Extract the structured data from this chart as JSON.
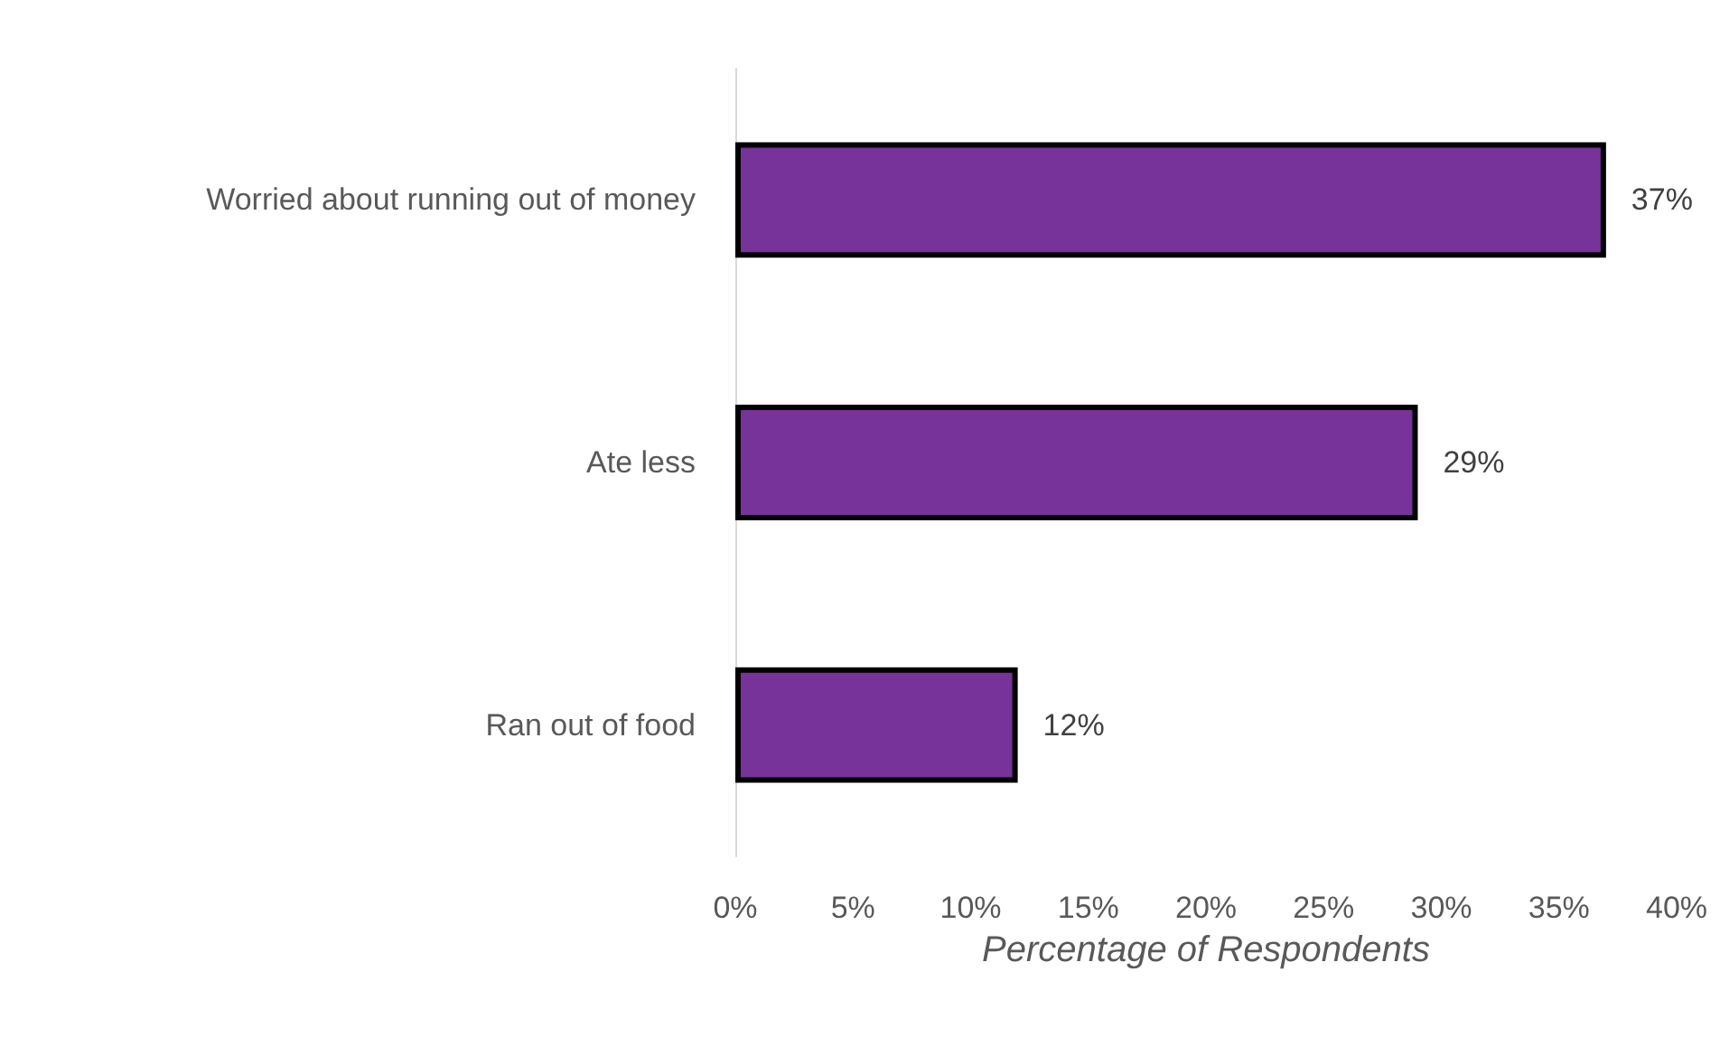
{
  "chart_data": {
    "type": "bar",
    "orientation": "horizontal",
    "categories": [
      "Worried about running out of money",
      "Ate less",
      "Ran out of food"
    ],
    "values": [
      37,
      29,
      12
    ],
    "value_labels": [
      "37%",
      "29%",
      "12%"
    ],
    "color": "#773399",
    "xlabel": "Percentage of Respondents",
    "xlim": [
      0,
      40
    ],
    "xticks": [
      {
        "value": 0,
        "label": "0%"
      },
      {
        "value": 5,
        "label": "5%"
      },
      {
        "value": 10,
        "label": "10%"
      },
      {
        "value": 15,
        "label": "15%"
      },
      {
        "value": 20,
        "label": "20%"
      },
      {
        "value": 25,
        "label": "25%"
      },
      {
        "value": 30,
        "label": "30%"
      },
      {
        "value": 35,
        "label": "35%"
      },
      {
        "value": 40,
        "label": "40%"
      }
    ],
    "grid": false
  }
}
